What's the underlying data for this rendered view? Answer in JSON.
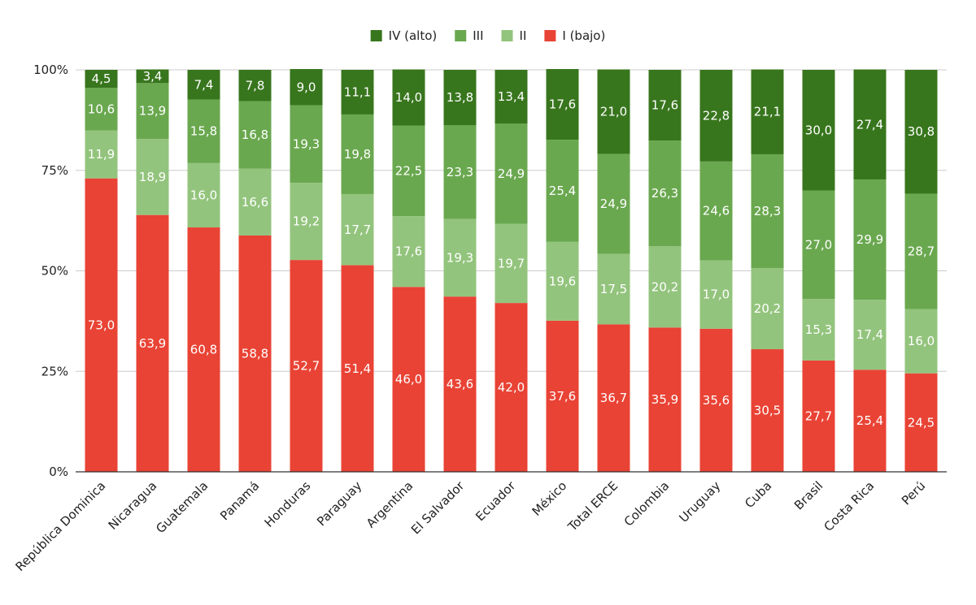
{
  "chart_data": {
    "type": "bar",
    "stacked": "percent",
    "categories": [
      "República Dominica",
      "Nicaragua",
      "Guatemala",
      "Panamá",
      "Honduras",
      "Paraguay",
      "Argentina",
      "El Salvador",
      "Ecuador",
      "México",
      "Total ERCE",
      "Colombia",
      "Uruguay",
      "Cuba",
      "Brasil",
      "Costa Rica",
      "Perú"
    ],
    "series": [
      {
        "name": "I (bajo)",
        "color": "#e94335",
        "values": [
          73.0,
          63.9,
          60.8,
          58.8,
          52.7,
          51.4,
          46.0,
          43.6,
          42.0,
          37.6,
          36.7,
          35.9,
          35.6,
          30.5,
          27.7,
          25.4,
          24.5
        ],
        "labels": [
          "73,0",
          "63,9",
          "60,8",
          "58,8",
          "52,7",
          "51,4",
          "46,0",
          "43,6",
          "42,0",
          "37,6",
          "36,7",
          "35,9",
          "35,6",
          "30,5",
          "27,7",
          "25,4",
          "24,5"
        ]
      },
      {
        "name": "II",
        "color": "#93c47d",
        "values": [
          11.9,
          18.9,
          16.0,
          16.6,
          19.2,
          17.7,
          17.6,
          19.3,
          19.7,
          19.6,
          17.5,
          20.2,
          17.0,
          20.2,
          15.3,
          17.4,
          16.0
        ],
        "labels": [
          "11,9",
          "18,9",
          "16,0",
          "16,6",
          "19,2",
          "17,7",
          "17,6",
          "19,3",
          "19,7",
          "19,6",
          "17,5",
          "20,2",
          "17,0",
          "20,2",
          "15,3",
          "17,4",
          "16,0"
        ]
      },
      {
        "name": "III",
        "color": "#6aa84f",
        "values": [
          10.6,
          13.9,
          15.8,
          16.8,
          19.3,
          19.8,
          22.5,
          23.3,
          24.9,
          25.4,
          24.9,
          26.3,
          24.6,
          28.3,
          27.0,
          29.9,
          28.7
        ],
        "labels": [
          "10,6",
          "13,9",
          "15,8",
          "16,8",
          "19,3",
          "19,8",
          "22,5",
          "23,3",
          "24,9",
          "25,4",
          "24,9",
          "26,3",
          "24,6",
          "28,3",
          "27,0",
          "29,9",
          "28,7"
        ]
      },
      {
        "name": "IV (alto)",
        "color": "#38761d",
        "values": [
          4.5,
          3.4,
          7.4,
          7.8,
          9.0,
          11.1,
          14.0,
          13.8,
          13.4,
          17.6,
          21.0,
          17.6,
          22.8,
          21.1,
          30.0,
          27.4,
          30.8
        ],
        "labels": [
          "4,5",
          "3,4",
          "7,4",
          "7,8",
          "9,0",
          "11,1",
          "14,0",
          "13,8",
          "13,4",
          "17,6",
          "21,0",
          "17,6",
          "22,8",
          "21,1",
          "30,0",
          "27,4",
          "30,8"
        ]
      }
    ],
    "legend_order": [
      "IV (alto)",
      "III",
      "II",
      "I (bajo)"
    ],
    "legend_position": "top-center",
    "yticks": [
      "0%",
      "25%",
      "50%",
      "75%",
      "100%"
    ],
    "ylim": [
      0,
      100
    ],
    "grid": true,
    "title": "",
    "xlabel": "",
    "ylabel": ""
  }
}
